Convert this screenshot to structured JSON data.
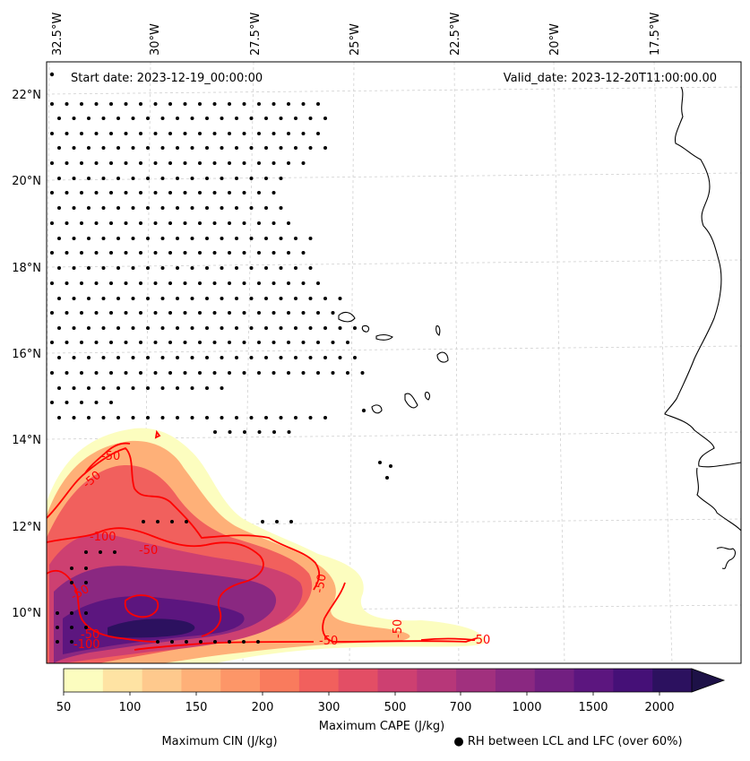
{
  "map": {
    "start_date": "Start date: 2023-12-19_00:00:00",
    "valid_date": "Valid_date: 2023-12-20T11:00:00.00",
    "lon_labels": [
      "32.5°W",
      "30°W",
      "27.5°W",
      "25°W",
      "22.5°W",
      "20°W",
      "17.5°W"
    ],
    "lat_labels": [
      "22°N",
      "20°N",
      "18°N",
      "16°N",
      "14°N",
      "12°N",
      "10°N"
    ],
    "cin_contour_labels": [
      "-50",
      "-50",
      "-100",
      "-50",
      "-50",
      "-50",
      "-50",
      "-100",
      "-50",
      "-50",
      "-50"
    ]
  },
  "colorbar": {
    "tick_labels": [
      "50",
      "100",
      "150",
      "200",
      "300",
      "500",
      "700",
      "1000",
      "1500",
      "2000"
    ],
    "title": "Maximum CAPE (J/kg)",
    "colors": [
      "#fcfdbf",
      "#fee3a3",
      "#fec98d",
      "#feb078",
      "#fd9668",
      "#f97b5d",
      "#f1605d",
      "#e34e65",
      "#cd4071",
      "#b73779",
      "#a1307e",
      "#8a2881",
      "#721f81",
      "#5c167f",
      "#451077",
      "#2c115f",
      "#1d1147"
    ]
  },
  "legend": {
    "cin_label": "Maximum CIN (J/kg)",
    "cin_color": "#ff0000",
    "rh_label": "● RH between LCL and LFC (over 60%)"
  }
}
